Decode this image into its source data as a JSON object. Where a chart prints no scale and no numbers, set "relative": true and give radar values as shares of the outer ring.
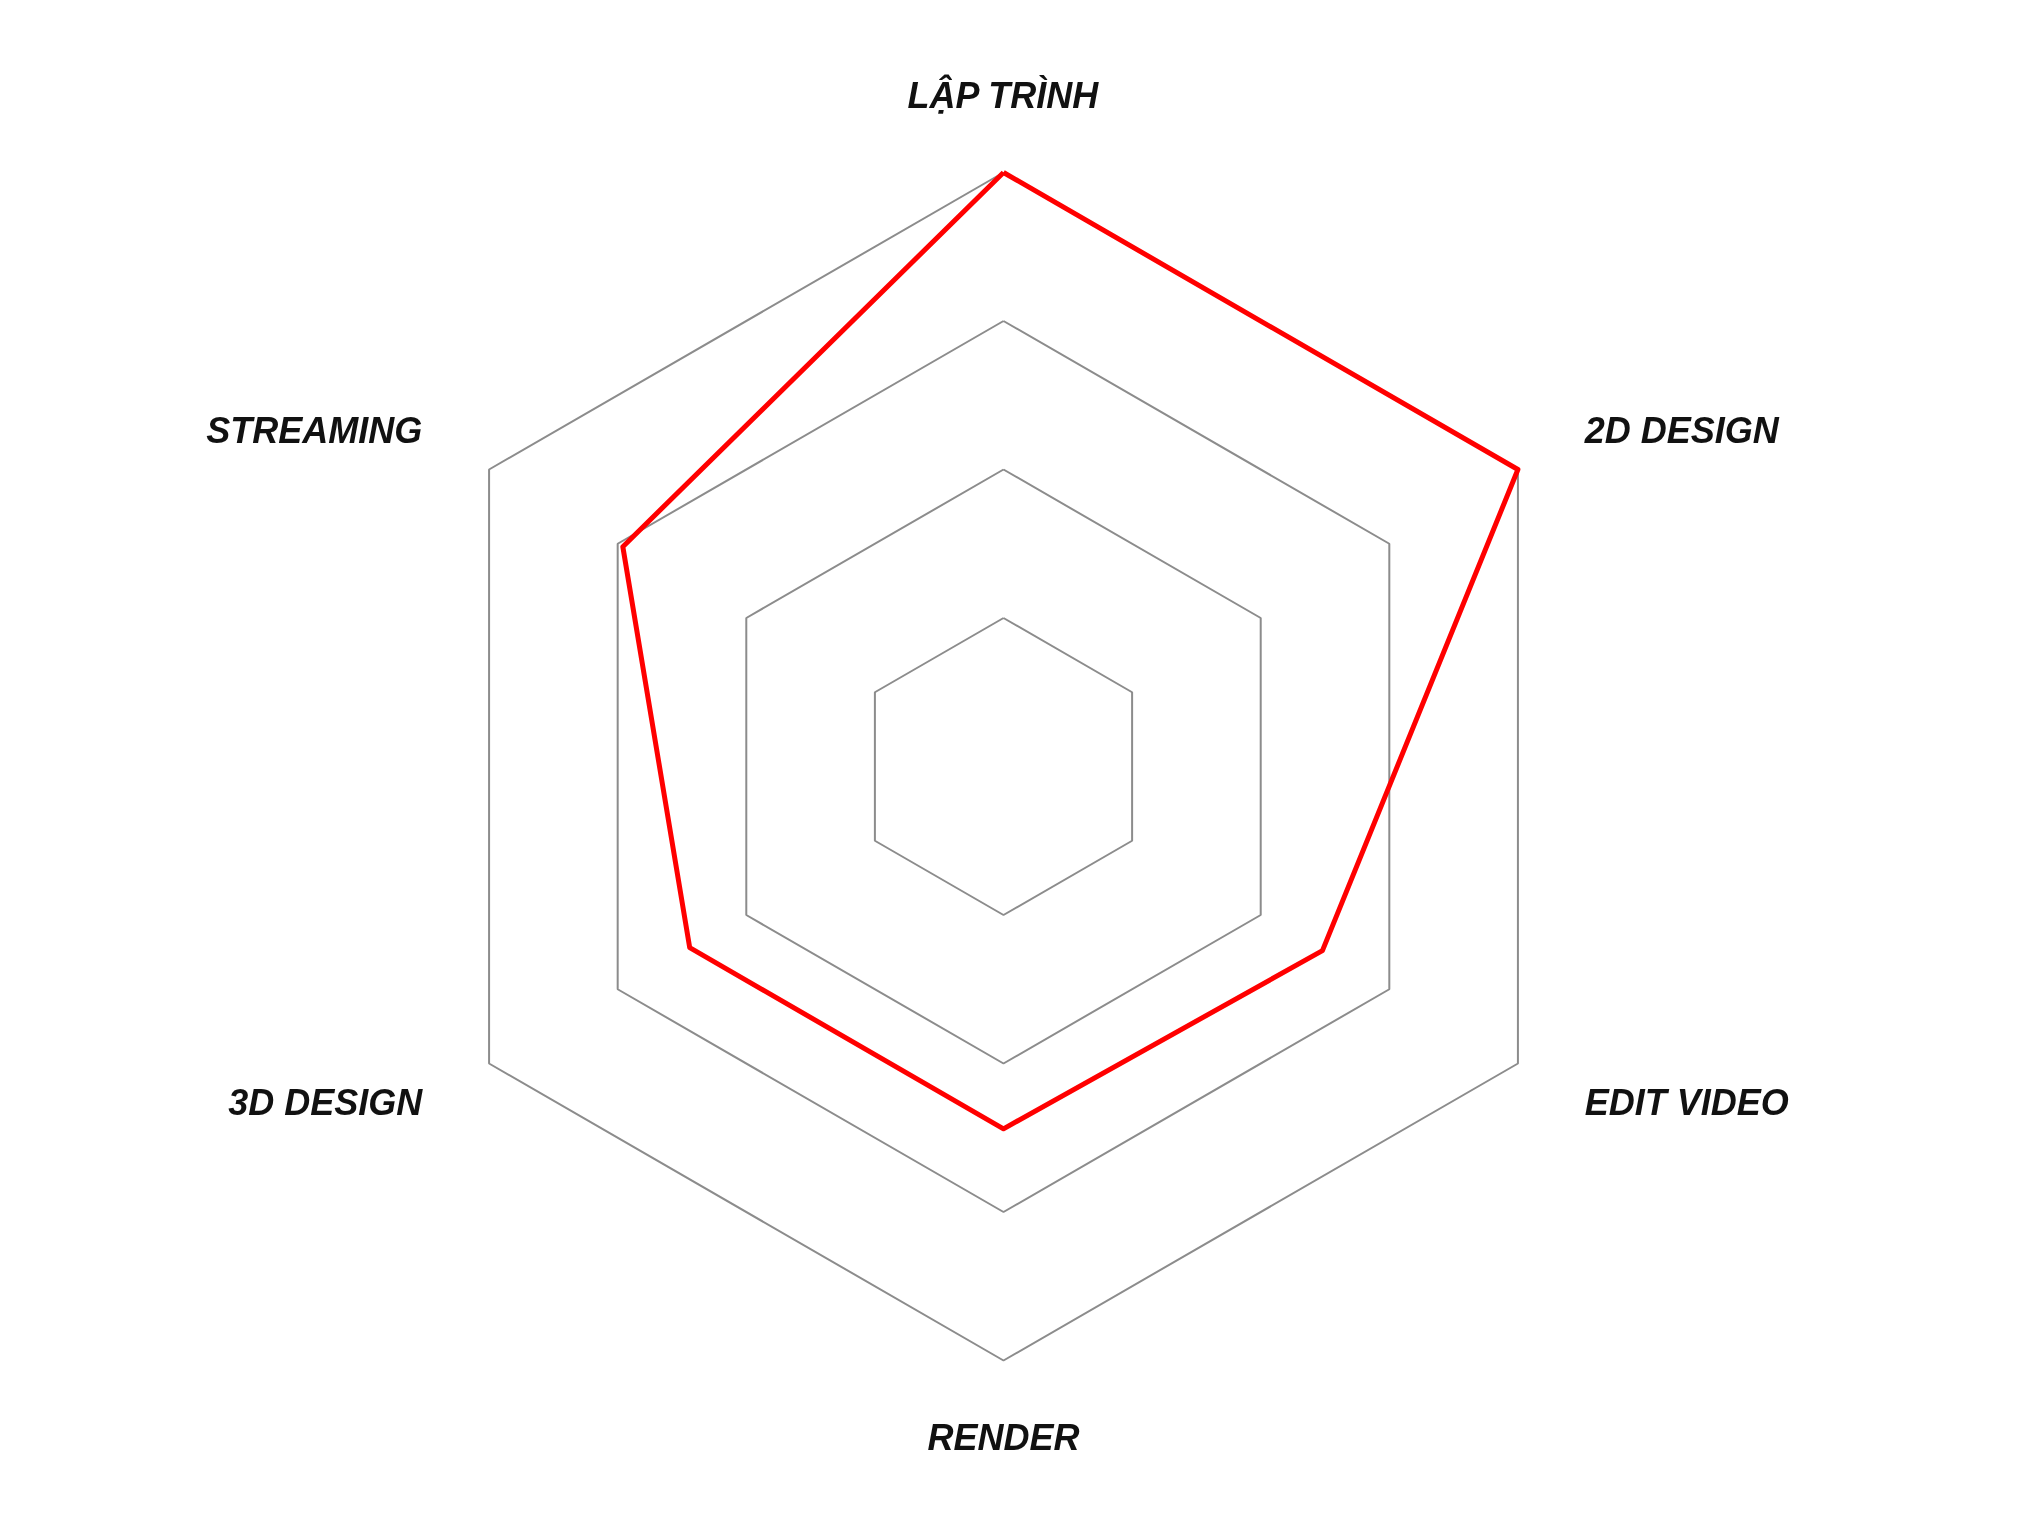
{
  "chart_data": {
    "type": "radar",
    "relative": true,
    "grid": true,
    "categories": [
      "LẬP TRÌNH",
      "2D DESIGN",
      "EDIT VIDEO",
      "RENDER",
      "3D DESIGN",
      "STREAMING"
    ],
    "series": [
      {
        "color": "#ff0000",
        "values": [
          1.0,
          1.0,
          0.62,
          0.61,
          0.61,
          0.74
        ]
      }
    ]
  }
}
